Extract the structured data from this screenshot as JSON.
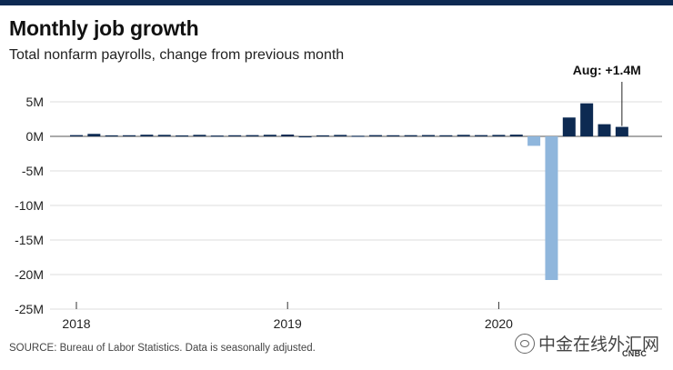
{
  "header": {
    "title": "Monthly job growth",
    "subtitle": "Total nonfarm payrolls, change from previous month"
  },
  "footer": {
    "source": "SOURCE: Bureau of Labor Statistics. Data is seasonally adjusted.",
    "watermark": "中金在线外汇网",
    "logo_text": "CNBC"
  },
  "colors": {
    "positive": "#0d2a52",
    "negative": "#8fb6dc",
    "grid": "#dddddd",
    "zero_line": "#555555",
    "top_bar": "#0d2a52"
  },
  "chart_data": {
    "type": "bar",
    "title": "Monthly job growth",
    "subtitle": "Total nonfarm payrolls, change from previous month",
    "unit": "millions of jobs",
    "ylim": [
      -25,
      5
    ],
    "yticks": [
      5,
      0,
      -5,
      -10,
      -15,
      -20,
      -25
    ],
    "ytick_labels": [
      "5M",
      "0M",
      "-5M",
      "-10M",
      "-15M",
      "-20M",
      "-25M"
    ],
    "xticks": [
      {
        "label": "2018",
        "month_index": 0
      },
      {
        "label": "2019",
        "month_index": 12
      },
      {
        "label": "2020",
        "month_index": 24
      }
    ],
    "grid": true,
    "annotation": {
      "text": "Aug: +1.4M",
      "month": "2020-08"
    },
    "months": [
      "2018-01",
      "2018-02",
      "2018-03",
      "2018-04",
      "2018-05",
      "2018-06",
      "2018-07",
      "2018-08",
      "2018-09",
      "2018-10",
      "2018-11",
      "2018-12",
      "2019-01",
      "2019-02",
      "2019-03",
      "2019-04",
      "2019-05",
      "2019-06",
      "2019-07",
      "2019-08",
      "2019-09",
      "2019-10",
      "2019-11",
      "2019-12",
      "2020-01",
      "2020-02",
      "2020-03",
      "2020-04",
      "2020-05",
      "2020-06",
      "2020-07",
      "2020-08"
    ],
    "values": [
      0.18,
      0.36,
      0.15,
      0.16,
      0.24,
      0.22,
      0.14,
      0.22,
      0.12,
      0.16,
      0.18,
      0.23,
      0.26,
      0.01,
      0.15,
      0.21,
      0.09,
      0.18,
      0.16,
      0.17,
      0.19,
      0.16,
      0.22,
      0.18,
      0.21,
      0.25,
      -1.37,
      -20.79,
      2.73,
      4.78,
      1.76,
      1.37
    ]
  }
}
